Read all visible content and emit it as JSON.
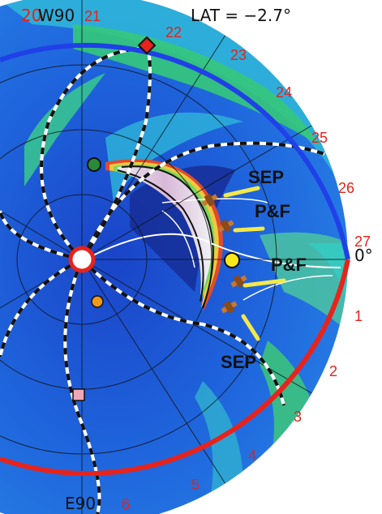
{
  "header": {
    "latitude_label": "LAT = −2.7°"
  },
  "axis_labels": {
    "top_num": "20",
    "top_w": "W90",
    "bottom_e": "E90",
    "right_deg": "0°"
  },
  "longitude_ticks": [
    "21",
    "22",
    "23",
    "24",
    "25",
    "26",
    "27",
    "1",
    "2",
    "3",
    "4",
    "5",
    "6"
  ],
  "annotations": {
    "sep_upper": "SEP",
    "pf_upper": "P&F",
    "pf_lower": "P&F",
    "sep_lower": "SEP"
  },
  "colors": {
    "outer_rim_blue": "#2040e8",
    "outer_rim_red": "#e8231c",
    "tick_label_red": "#e0241b",
    "background_blue": "#1e5fe0",
    "green_region": "#3cc878",
    "annotation_yellow": "#f4e84a",
    "spacecraft_orange": "#c87832"
  }
}
